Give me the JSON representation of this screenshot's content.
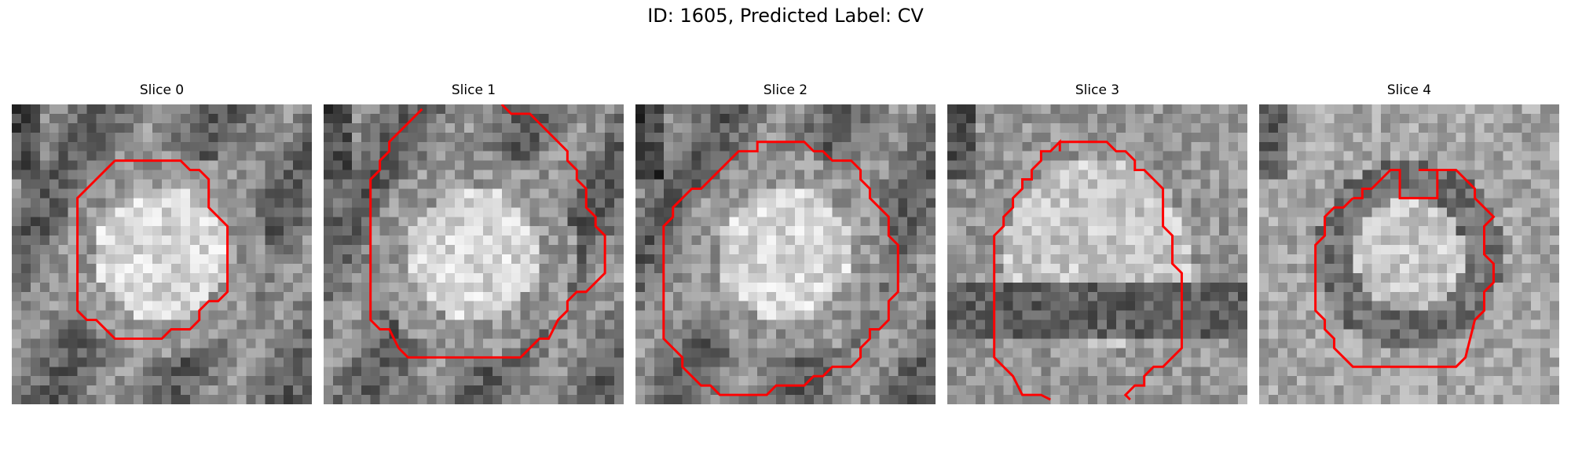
{
  "figure": {
    "title": "ID: 1605, Predicted Label: CV",
    "contour_color": "#ff0000",
    "colormap": "gray"
  },
  "panels": [
    {
      "title": "Slice 0"
    },
    {
      "title": "Slice 1"
    },
    {
      "title": "Slice 2"
    },
    {
      "title": "Slice 3"
    },
    {
      "title": "Slice 4"
    }
  ]
}
